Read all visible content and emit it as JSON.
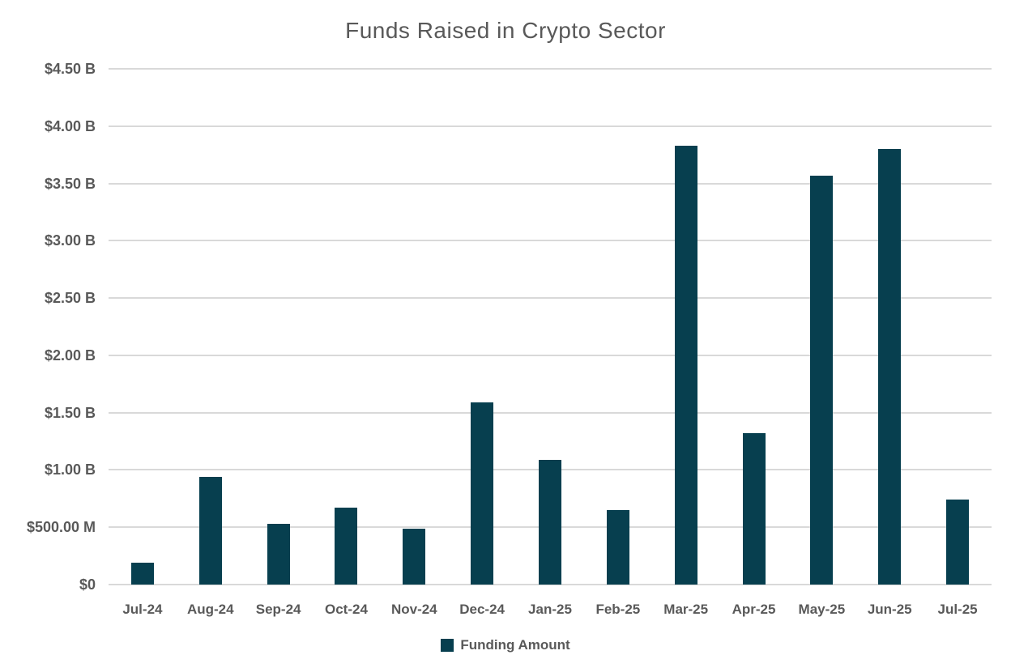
{
  "chart_data": {
    "type": "bar",
    "title": "Funds Raised in Crypto Sector",
    "categories": [
      "Jul-24",
      "Aug-24",
      "Sep-24",
      "Oct-24",
      "Nov-24",
      "Dec-24",
      "Jan-25",
      "Feb-25",
      "Mar-25",
      "Apr-25",
      "May-25",
      "Jun-25",
      "Jul-25"
    ],
    "series": [
      {
        "name": "Funding Amount",
        "values_billions": [
          0.19,
          0.94,
          0.53,
          0.67,
          0.49,
          1.59,
          1.09,
          0.65,
          3.83,
          1.32,
          3.57,
          3.8,
          0.74
        ]
      }
    ],
    "xlabel": "",
    "ylabel": "",
    "ylim": [
      0,
      4.5
    ],
    "ytick_interval_billions": 0.5,
    "yticks": [
      {
        "value": 0.0,
        "label": "$0"
      },
      {
        "value": 0.5,
        "label": "$500.00 M"
      },
      {
        "value": 1.0,
        "label": "$1.00 B"
      },
      {
        "value": 1.5,
        "label": "$1.50 B"
      },
      {
        "value": 2.0,
        "label": "$2.00 B"
      },
      {
        "value": 2.5,
        "label": "$2.50 B"
      },
      {
        "value": 3.0,
        "label": "$3.00 B"
      },
      {
        "value": 3.5,
        "label": "$3.50 B"
      },
      {
        "value": 4.0,
        "label": "$4.00 B"
      },
      {
        "value": 4.5,
        "label": "$4.50 B"
      }
    ],
    "grid": true,
    "legend": {
      "position": "bottom",
      "label": "Funding Amount"
    },
    "colors": {
      "bar": "#073f4f",
      "gridline": "#d9d9d9",
      "text": "#595959",
      "background": "#ffffff"
    }
  }
}
